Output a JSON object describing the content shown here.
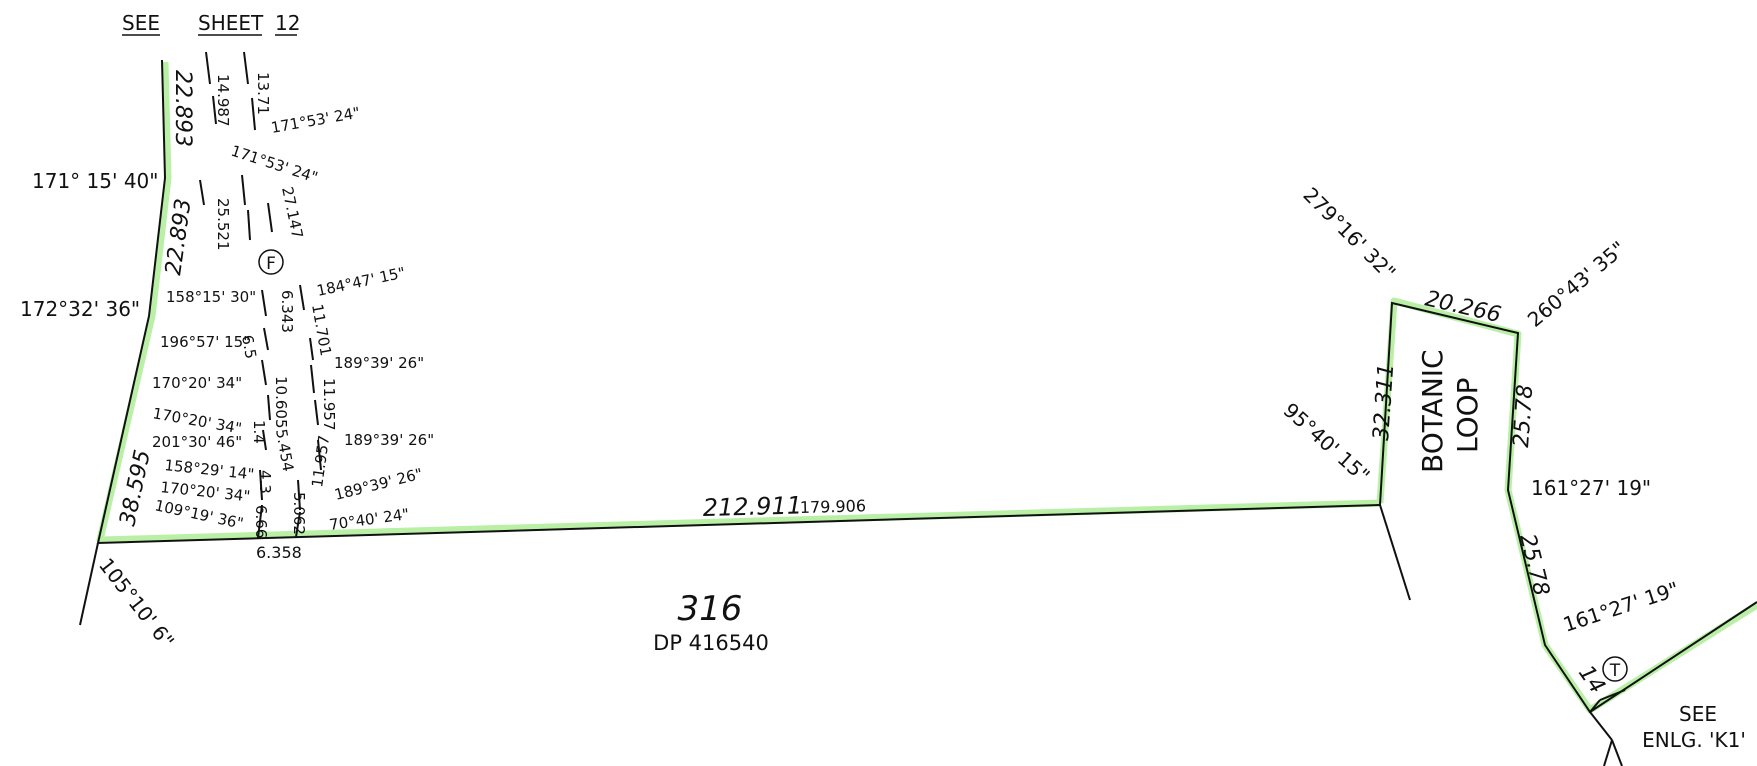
{
  "header": {
    "see": "SEE",
    "sheet": "SHEET",
    "number": "12"
  },
  "lot": {
    "number": "316",
    "plan": "DP 416540"
  },
  "road": {
    "name1": "BOTANIC",
    "name2": "LOOP"
  },
  "enlargement": {
    "see": "SEE",
    "ref": "ENLG. 'K1'"
  },
  "circles": {
    "f": "F",
    "t": "T"
  },
  "labels": {
    "b1": "171° 15' 40\"",
    "b2": "172°32' 36\"",
    "b3": "105°10' 6\"",
    "b4": "279°16' 32\"",
    "b5": "260°43' 35\"",
    "b6": "95°40' 15\"",
    "b7": "161°27' 19\"",
    "b8": "161°27' 19\"",
    "d1": "22.893",
    "d2": "22.893",
    "d3": "38.595",
    "d4": "212.911",
    "d5": "179.906",
    "d6": "20.266",
    "d7": "32.311",
    "d8": "25.78",
    "d9": "25.78",
    "d10": "14",
    "d11": "6.358",
    "i1": "14.987",
    "i2": "13.71",
    "i3": "171°53' 24\"",
    "i4": "171°53' 24\"",
    "i5": "25.521",
    "i6": "27.147",
    "i7": "158°15' 30\"",
    "i8": "6.343",
    "i9": "184°47' 15\"",
    "i10": "11.701",
    "i11": "196°57' 15\"",
    "i12": "6.5",
    "i13": "189°39' 26\"",
    "i14": "170°20' 34\"",
    "i15": "10.605",
    "i16": "11.957",
    "i17": "170°20' 34\"",
    "i18": "1.4",
    "i19": "201°30' 46\"",
    "i20": "5.454",
    "i21": "189°39' 26\"",
    "i22": "158°29' 14\"",
    "i23": "4.3",
    "i24": "11.957",
    "i25": "170°20' 34\"",
    "i26": "189°39' 26\"",
    "i27": "109°19' 36\"",
    "i28": "6.66",
    "i29": "5.062",
    "i30": "70°40' 24\""
  },
  "colors": {
    "highlight": "#b9f0a6",
    "line": "#111111"
  }
}
